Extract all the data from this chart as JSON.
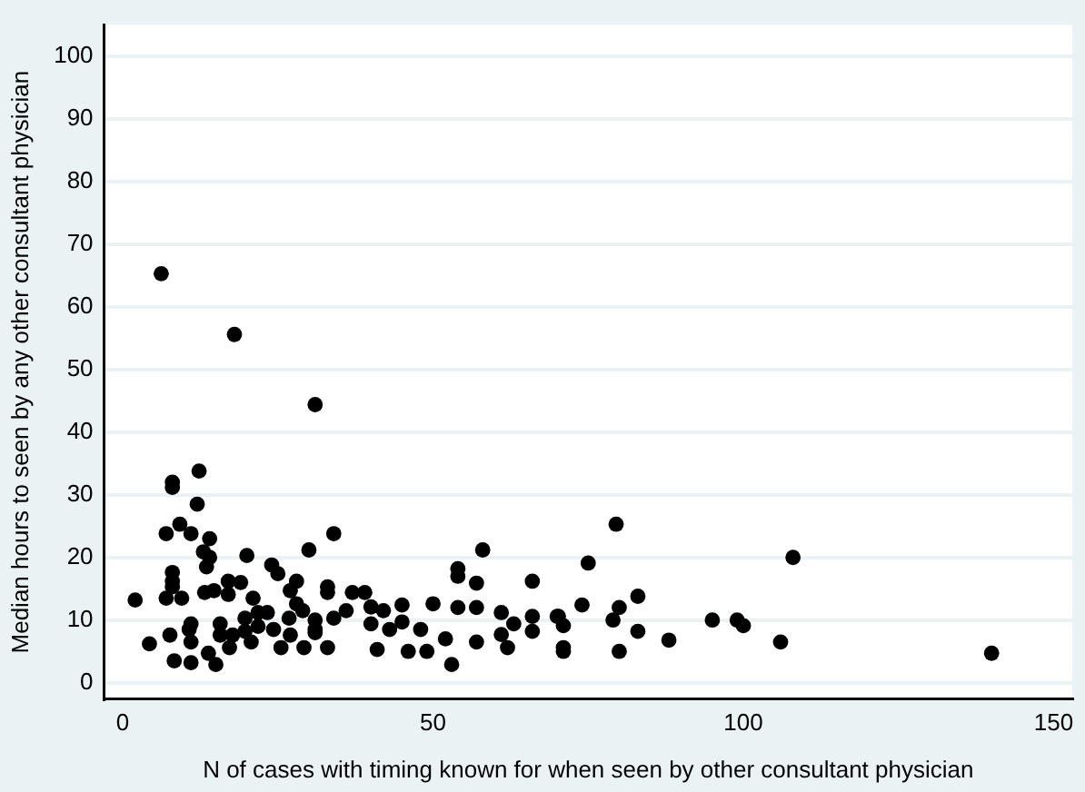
{
  "chart_data": {
    "type": "scatter",
    "xlabel": "N of cases with timing known for when seen by other consultant physician",
    "ylabel": "Median hours to seen by any other consultant physician",
    "xlim": [
      -3,
      153
    ],
    "ylim": [
      -2.6,
      105
    ],
    "xticks": [
      0,
      50,
      100,
      150
    ],
    "yticks": [
      0,
      10,
      20,
      30,
      40,
      50,
      60,
      70,
      80,
      90,
      100
    ],
    "grid": "y",
    "legend": false,
    "marker": "circle",
    "series": [
      {
        "color": "#000000",
        "x": [
          6.2,
          18,
          31,
          8,
          8,
          12.3,
          2,
          4.3,
          9.2,
          7,
          11,
          12,
          14,
          13,
          14,
          13.5,
          8,
          8,
          8,
          7,
          9.5,
          7.6,
          10.7,
          11,
          8.3,
          11,
          11,
          13.8,
          15,
          13.2,
          14.7,
          20,
          17,
          19,
          17,
          21,
          15.7,
          15.7,
          17.7,
          17.2,
          19.7,
          19.7,
          21.8,
          21.8,
          20.7,
          24,
          25,
          23.3,
          24.3,
          27,
          25.5,
          27,
          28,
          29,
          29.2,
          30,
          28,
          26.8,
          31,
          34,
          58,
          54,
          54,
          57,
          66,
          50,
          54,
          57,
          61,
          66,
          70,
          63,
          66,
          61,
          57,
          62,
          71,
          53,
          49,
          46,
          41,
          52,
          45,
          45,
          43,
          40,
          40,
          37,
          39,
          33,
          33,
          36,
          34,
          31,
          31,
          33,
          42,
          48,
          70.2,
          71,
          71,
          74,
          75,
          79.5,
          79,
          80,
          80,
          83,
          83,
          88,
          95,
          99,
          100,
          106,
          108,
          140
        ],
        "values": [
          65.3,
          55.6,
          44.4,
          32,
          31.2,
          33.8,
          13.2,
          6.2,
          25.3,
          23.8,
          23.8,
          28.5,
          23,
          20.9,
          20,
          18.5,
          17.6,
          16.2,
          15.3,
          13.5,
          13.5,
          7.6,
          8.5,
          9.4,
          3.5,
          6.5,
          3.2,
          4.7,
          2.9,
          14.4,
          14.7,
          20.3,
          16.2,
          16,
          14.1,
          13.5,
          9.4,
          7.6,
          7.6,
          5.6,
          10.3,
          8.2,
          11.2,
          9,
          6.5,
          18.8,
          17.4,
          11.2,
          8.5,
          7.6,
          5.6,
          14.7,
          12.6,
          11.5,
          5.6,
          21.2,
          16.2,
          10.3,
          8,
          23.8,
          21.2,
          18.2,
          17,
          15.9,
          16.2,
          12.6,
          12,
          12,
          11.2,
          10.6,
          10.6,
          9.4,
          8.2,
          7.7,
          6.5,
          5.6,
          5.6,
          2.9,
          5,
          5,
          5.3,
          7,
          12.4,
          9.7,
          8.5,
          9.4,
          12.1,
          14.4,
          14.4,
          15.3,
          14.4,
          11.5,
          10.3,
          10,
          8.5,
          5.6,
          11.5,
          8.5,
          10.6,
          9.1,
          5,
          12.4,
          19.1,
          25.3,
          10,
          12,
          5,
          13.8,
          8.2,
          6.8,
          10,
          10,
          9.1,
          6.5,
          20,
          4.7
        ]
      }
    ]
  }
}
